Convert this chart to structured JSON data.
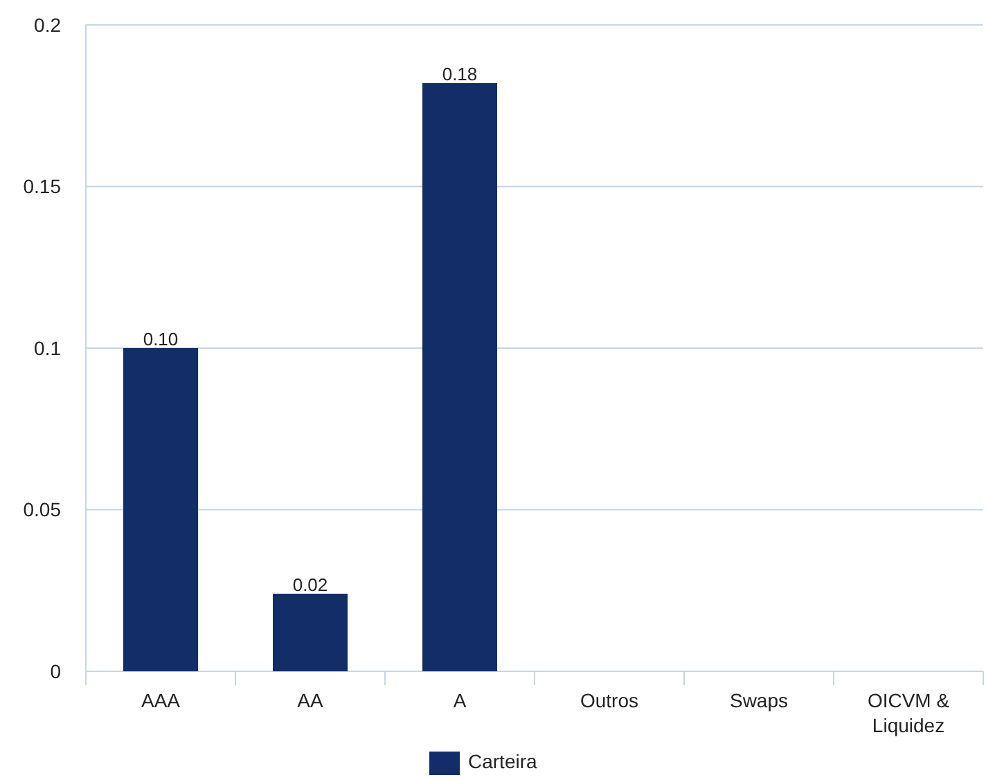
{
  "chart_data": {
    "type": "bar",
    "categories": [
      "AAA",
      "AA",
      "A",
      "Outros",
      "Swaps",
      "OICVM & Liquidez"
    ],
    "series": [
      {
        "name": "Carteira",
        "color": "#132d69",
        "values": [
          0.1,
          0.024,
          0.182,
          null,
          null,
          null
        ],
        "value_labels": [
          "0.10",
          "0.02",
          "0.18",
          null,
          null,
          null
        ]
      }
    ],
    "ylim": [
      0,
      0.2
    ],
    "yticks": [
      0,
      0.05,
      0.1,
      0.15,
      0.2
    ],
    "grid": "y",
    "legend": "bottom"
  }
}
